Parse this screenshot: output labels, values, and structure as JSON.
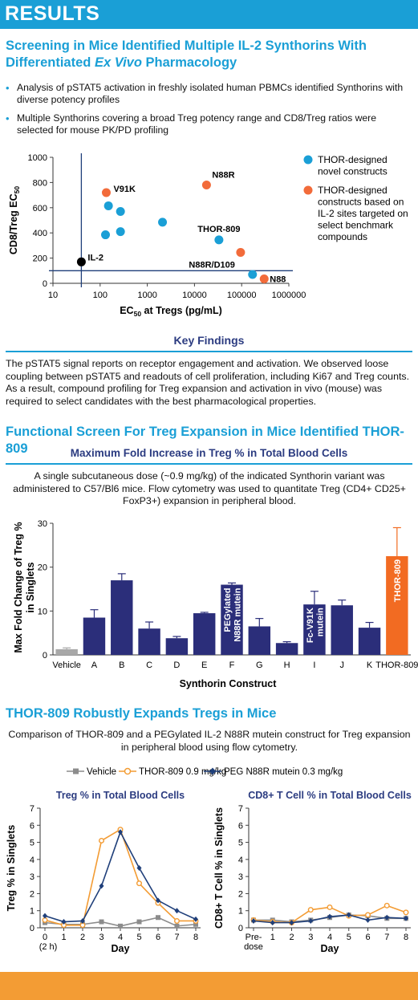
{
  "header": {
    "title": "RESULTS"
  },
  "section1": {
    "title_line1": "Screening in Mice Identified Multiple IL-2 Synthorins With",
    "title_line2_pre": "Differentiated ",
    "title_line2_em": "Ex Vivo",
    "title_line2_post": " Pharmacology",
    "bullets": [
      "Analysis of pSTAT5 activation in freshly isolated human PBMCs identified Synthorins with diverse potency profiles",
      "Multiple Synthorins covering a broad Treg potency range and CD8/Treg ratios were selected for mouse PK/PD profiling"
    ]
  },
  "scatter": {
    "ylabel_main": "CD8/Treg EC",
    "ylabel_sub": "50",
    "xlabel_main": "EC",
    "xlabel_sub": "50",
    "xlabel_post": " at Tregs (pg/mL)",
    "legend": [
      {
        "label_lines": [
          "THOR-designed",
          "novel constructs"
        ],
        "color": "#1a9fd6"
      },
      {
        "label_lines": [
          "THOR-designed",
          "constructs based on",
          "IL-2 sites targeted on",
          "select benchmark",
          "compounds"
        ],
        "color": "#f26b3a"
      }
    ]
  },
  "key_findings": {
    "title": "Key Findings",
    "text": "The pSTAT5 signal reports on receptor engagement and activation. We observed loose coupling between pSTAT5 and readouts of cell proliferation, including Ki67 and Treg counts. As a result, compound profiling for Treg expansion and activation in vivo (mouse) was required to select candidates with the best pharmacological properties."
  },
  "section2": {
    "title": "Functional Screen For Treg Expansion in Mice Identified THOR-809",
    "box_title": "Maximum Fold Increase in Treg % in Total Blood Cells",
    "desc": "A single subcutaneous dose (~0.9 mg/kg) of the indicated Synthorin variant was administered to C57/Bl6 mice. Flow cytometry was used to quantitate Treg (CD4+ CD25+ FoxP3+) expansion in peripheral blood."
  },
  "section3": {
    "title": "THOR-809 Robustly Expands Tregs in Mice",
    "desc": "Comparison of THOR-809 and a PEGylated IL-2 N88R mutein construct for Treg expansion in peripheral blood using flow cytometry.",
    "legend": [
      "Vehicle",
      "THOR-809 0.9 mg/kg",
      "PEG N88R mutein 0.3 mg/kg"
    ]
  },
  "chart_data": [
    {
      "type": "scatter",
      "xlabel": "EC50 at Tregs (pg/mL)",
      "ylabel": "CD8/Treg EC50",
      "xscale": "log",
      "xlim": [
        10,
        1000000
      ],
      "ylim": [
        0,
        1000
      ],
      "xticks": [
        "10",
        "100",
        "1000",
        "10000",
        "100000",
        "1000000"
      ],
      "yticks": [
        "0",
        "200",
        "400",
        "600",
        "800",
        "1000"
      ],
      "reference_lines": {
        "x": 40,
        "y": 100
      },
      "points": [
        {
          "x": 135,
          "y": 720,
          "group": "benchmark",
          "label": "V91K"
        },
        {
          "x": 18000,
          "y": 780,
          "group": "benchmark",
          "label": "N88R"
        },
        {
          "x": 95000,
          "y": 245,
          "group": "benchmark",
          "label": "N88R/D109"
        },
        {
          "x": 300000,
          "y": 35,
          "group": "benchmark",
          "label": "N88"
        },
        {
          "x": 150,
          "y": 615,
          "group": "novel"
        },
        {
          "x": 270,
          "y": 570,
          "group": "novel"
        },
        {
          "x": 2100,
          "y": 485,
          "group": "novel"
        },
        {
          "x": 130,
          "y": 385,
          "group": "novel"
        },
        {
          "x": 270,
          "y": 410,
          "group": "novel"
        },
        {
          "x": 33000,
          "y": 345,
          "group": "novel",
          "label": "THOR-809"
        },
        {
          "x": 170000,
          "y": 70,
          "group": "novel"
        },
        {
          "x": 40,
          "y": 170,
          "group": "reference",
          "label": "IL-2"
        }
      ]
    },
    {
      "type": "bar",
      "xlabel": "Synthorin Construct",
      "ylabel": "Max Fold Change of Treg % in Singlets",
      "ylim": [
        0,
        30
      ],
      "yticks": [
        "0",
        "10",
        "20",
        "30"
      ],
      "categories": [
        "Vehicle",
        "A",
        "B",
        "C",
        "D",
        "E",
        "F",
        "G",
        "H",
        "I",
        "J",
        "K",
        "THOR-809"
      ],
      "values": [
        1.3,
        8.5,
        17,
        6,
        3.8,
        9.5,
        16,
        6.5,
        2.7,
        11.5,
        11.3,
        6.2,
        22.5
      ],
      "errors": [
        0.3,
        1.8,
        1.5,
        1.5,
        0.4,
        0.2,
        0.4,
        1.8,
        0.3,
        3,
        1.2,
        1.2,
        6.5
      ],
      "bar_labels": {
        "F": "PEGylated N88R mutein",
        "I": "Fc-V91K mutein",
        "THOR-809": "THOR-809"
      },
      "colors": {
        "default": "#2b2e7a",
        "Vehicle": "#a8a8a8",
        "THOR-809": "#f26b22"
      }
    },
    {
      "type": "line",
      "title": "Treg % in Total Blood Cells",
      "xlabel": "Day",
      "ylabel": "Treg % in Singlets",
      "ylim": [
        0,
        7
      ],
      "x": [
        0,
        1,
        2,
        3,
        4,
        5,
        6,
        7,
        8
      ],
      "xtick_labels": [
        "0",
        "1",
        "2",
        "3",
        "4",
        "5",
        "6",
        "7",
        "8"
      ],
      "xtick_sub": "(2 h)",
      "series": [
        {
          "name": "Vehicle",
          "values": [
            0.3,
            0.2,
            0.2,
            0.35,
            0.1,
            0.35,
            0.6,
            0.1,
            0.2
          ],
          "color": "#8c8c8c"
        },
        {
          "name": "THOR-809 0.9 mg/kg",
          "values": [
            0.45,
            0.15,
            0.15,
            5.1,
            5.75,
            2.6,
            1.45,
            0.4,
            0.4
          ],
          "color": "#f39c34"
        },
        {
          "name": "PEG N88R mutein 0.3 mg/kg",
          "values": [
            0.7,
            0.35,
            0.4,
            2.45,
            5.6,
            3.5,
            1.6,
            1.0,
            0.5
          ],
          "color": "#1f3f7a"
        }
      ]
    },
    {
      "type": "line",
      "title": "CD8+ T Cell % in Total Blood Cells",
      "xlabel": "Day",
      "ylabel": "CD8+ T Cell % in Singlets",
      "ylim": [
        0,
        7
      ],
      "x": [
        0,
        1,
        2,
        3,
        4,
        5,
        6,
        7,
        8
      ],
      "xtick_labels": [
        "Pre-",
        "1",
        "2",
        "3",
        "4",
        "5",
        "6",
        "7",
        "8"
      ],
      "xtick_sub": "dose",
      "series": [
        {
          "name": "Vehicle",
          "values": [
            0.45,
            0.45,
            0.35,
            0.45,
            0.6,
            0.75,
            0.7,
            0.55,
            0.55
          ],
          "color": "#8c8c8c"
        },
        {
          "name": "THOR-809 0.9 mg/kg",
          "values": [
            0.45,
            0.35,
            0.3,
            1.05,
            1.2,
            0.7,
            0.75,
            1.3,
            0.9
          ],
          "color": "#f39c34"
        },
        {
          "name": "PEG N88R mutein 0.3 mg/kg",
          "values": [
            0.4,
            0.3,
            0.3,
            0.4,
            0.65,
            0.75,
            0.45,
            0.6,
            0.55
          ],
          "color": "#1f3f7a"
        }
      ]
    }
  ]
}
